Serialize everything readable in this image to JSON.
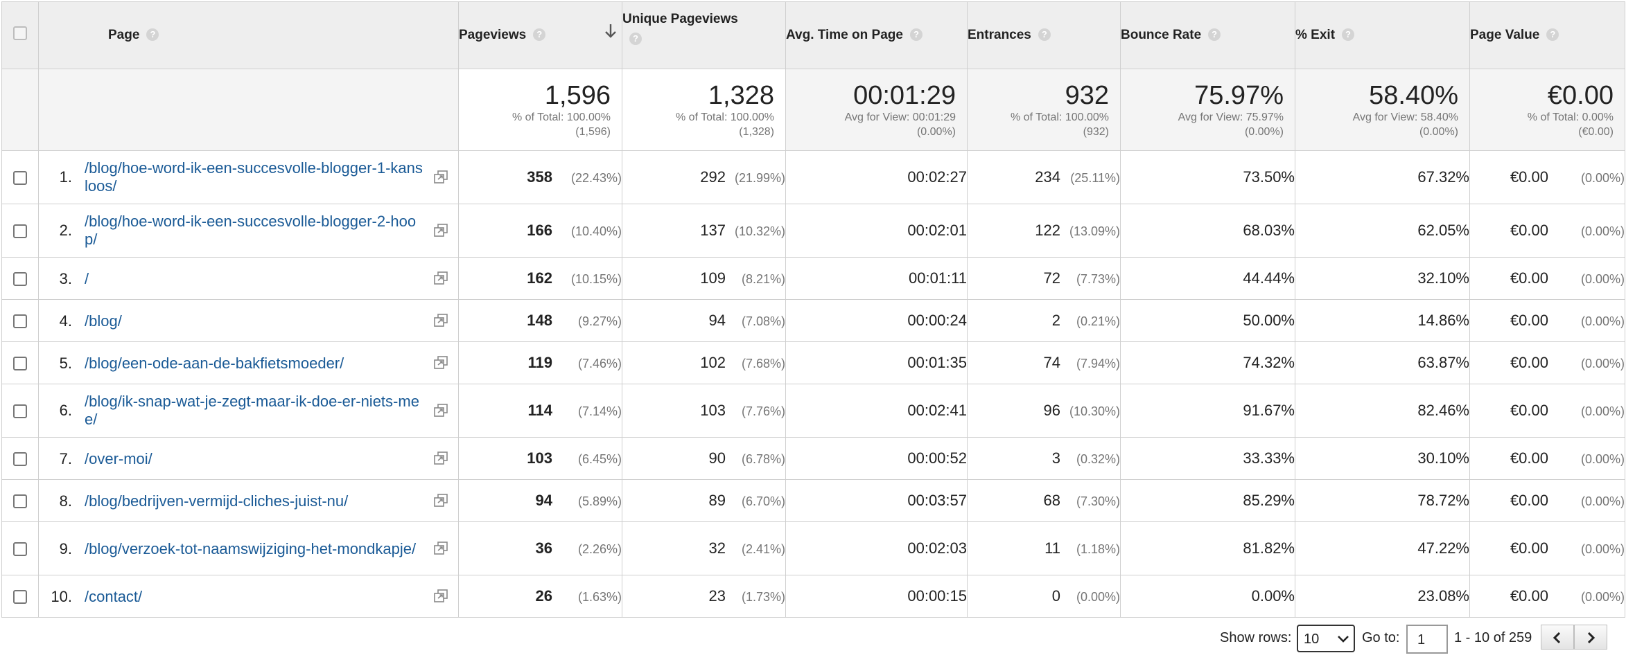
{
  "columns": {
    "page": "Page",
    "pageviews": "Pageviews",
    "unique_pageviews": "Unique Pageviews",
    "avg_time": "Avg. Time on Page",
    "entrances": "Entrances",
    "bounce_rate": "Bounce Rate",
    "exit": "% Exit",
    "page_value": "Page Value",
    "help_glyph": "?"
  },
  "summary": {
    "pageviews": {
      "value": "1,596",
      "line1": "% of Total: 100.00%",
      "line2": "(1,596)"
    },
    "unique_pageviews": {
      "value": "1,328",
      "line1": "% of Total: 100.00%",
      "line2": "(1,328)"
    },
    "avg_time": {
      "value": "00:01:29",
      "line1": "Avg for View: 00:01:29",
      "line2": "(0.00%)"
    },
    "entrances": {
      "value": "932",
      "line1": "% of Total: 100.00%",
      "line2": "(932)"
    },
    "bounce_rate": {
      "value": "75.97%",
      "line1": "Avg for View: 75.97%",
      "line2": "(0.00%)"
    },
    "exit": {
      "value": "58.40%",
      "line1": "Avg for View: 58.40%",
      "line2": "(0.00%)"
    },
    "page_value": {
      "value": "€0.00",
      "line1": "% of Total: 0.00%",
      "line2": "(€0.00)"
    }
  },
  "rows": [
    {
      "idx": "1.",
      "page": "/blog/hoe-word-ik-een-succesvolle-blogger-1-kansloos/",
      "pv": "358",
      "pv_pct": "(22.43%)",
      "upv": "292",
      "upv_pct": "(21.99%)",
      "time": "00:02:27",
      "ent": "234",
      "ent_pct": "(25.11%)",
      "bounce": "73.50%",
      "exit": "67.32%",
      "value": "€0.00",
      "value_pct": "(0.00%)"
    },
    {
      "idx": "2.",
      "page": "/blog/hoe-word-ik-een-succesvolle-blogger-2-hoop/",
      "pv": "166",
      "pv_pct": "(10.40%)",
      "upv": "137",
      "upv_pct": "(10.32%)",
      "time": "00:02:01",
      "ent": "122",
      "ent_pct": "(13.09%)",
      "bounce": "68.03%",
      "exit": "62.05%",
      "value": "€0.00",
      "value_pct": "(0.00%)"
    },
    {
      "idx": "3.",
      "page": "/",
      "pv": "162",
      "pv_pct": "(10.15%)",
      "upv": "109",
      "upv_pct": "(8.21%)",
      "time": "00:01:11",
      "ent": "72",
      "ent_pct": "(7.73%)",
      "bounce": "44.44%",
      "exit": "32.10%",
      "value": "€0.00",
      "value_pct": "(0.00%)"
    },
    {
      "idx": "4.",
      "page": "/blog/",
      "pv": "148",
      "pv_pct": "(9.27%)",
      "upv": "94",
      "upv_pct": "(7.08%)",
      "time": "00:00:24",
      "ent": "2",
      "ent_pct": "(0.21%)",
      "bounce": "50.00%",
      "exit": "14.86%",
      "value": "€0.00",
      "value_pct": "(0.00%)"
    },
    {
      "idx": "5.",
      "page": "/blog/een-ode-aan-de-bakfietsmoeder/",
      "pv": "119",
      "pv_pct": "(7.46%)",
      "upv": "102",
      "upv_pct": "(7.68%)",
      "time": "00:01:35",
      "ent": "74",
      "ent_pct": "(7.94%)",
      "bounce": "74.32%",
      "exit": "63.87%",
      "value": "€0.00",
      "value_pct": "(0.00%)"
    },
    {
      "idx": "6.",
      "page": "/blog/ik-snap-wat-je-zegt-maar-ik-doe-er-niets-mee/",
      "pv": "114",
      "pv_pct": "(7.14%)",
      "upv": "103",
      "upv_pct": "(7.76%)",
      "time": "00:02:41",
      "ent": "96",
      "ent_pct": "(10.30%)",
      "bounce": "91.67%",
      "exit": "82.46%",
      "value": "€0.00",
      "value_pct": "(0.00%)"
    },
    {
      "idx": "7.",
      "page": "/over-moi/",
      "pv": "103",
      "pv_pct": "(6.45%)",
      "upv": "90",
      "upv_pct": "(6.78%)",
      "time": "00:00:52",
      "ent": "3",
      "ent_pct": "(0.32%)",
      "bounce": "33.33%",
      "exit": "30.10%",
      "value": "€0.00",
      "value_pct": "(0.00%)"
    },
    {
      "idx": "8.",
      "page": "/blog/bedrijven-vermijd-cliches-juist-nu/",
      "pv": "94",
      "pv_pct": "(5.89%)",
      "upv": "89",
      "upv_pct": "(6.70%)",
      "time": "00:03:57",
      "ent": "68",
      "ent_pct": "(7.30%)",
      "bounce": "85.29%",
      "exit": "78.72%",
      "value": "€0.00",
      "value_pct": "(0.00%)"
    },
    {
      "idx": "9.",
      "page": "/blog/verzoek-tot-naamswijziging-het-mondkapje/",
      "pv": "36",
      "pv_pct": "(2.26%)",
      "upv": "32",
      "upv_pct": "(2.41%)",
      "time": "00:02:03",
      "ent": "11",
      "ent_pct": "(1.18%)",
      "bounce": "81.82%",
      "exit": "47.22%",
      "value": "€0.00",
      "value_pct": "(0.00%)"
    },
    {
      "idx": "10.",
      "page": "/contact/",
      "pv": "26",
      "pv_pct": "(1.63%)",
      "upv": "23",
      "upv_pct": "(1.73%)",
      "time": "00:00:15",
      "ent": "0",
      "ent_pct": "(0.00%)",
      "bounce": "0.00%",
      "exit": "23.08%",
      "value": "€0.00",
      "value_pct": "(0.00%)"
    }
  ],
  "footer": {
    "show_rows_label": "Show rows:",
    "show_rows_value": "10",
    "goto_label": "Go to:",
    "goto_value": "1",
    "range_text": "1 - 10 of 259"
  },
  "colors": {
    "link": "#1a5a96",
    "header_bg": "#eeeeee",
    "muted": "#757575"
  }
}
